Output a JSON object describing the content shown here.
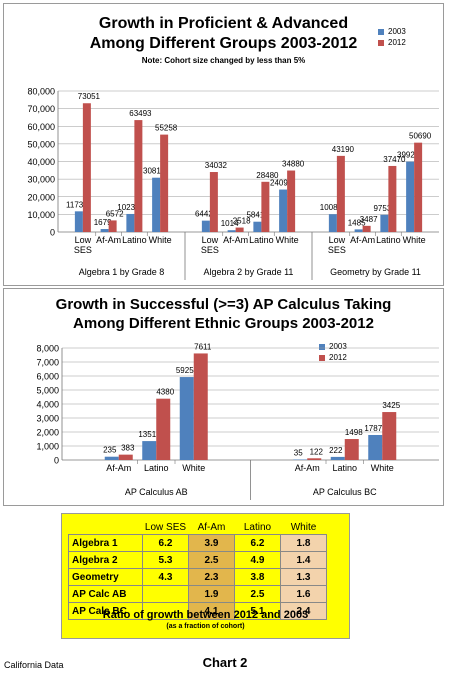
{
  "chart_data": [
    {
      "type": "bar",
      "title": "Growth in Proficient & Advanced Among Different Groups 2003-2012",
      "title_lines": [
        "Growth in Proficient & Advanced",
        "Among Different Groups 2003-2012"
      ],
      "subtitle": "Note: Cohort size changed by less than 5%",
      "groups": [
        {
          "label": "Algebra 1 by Grade 8",
          "categories": [
            "Low SES",
            "Af-Am",
            "Latino",
            "White"
          ]
        },
        {
          "label": "Algebra 2 by Grade 11",
          "categories": [
            "Low SES",
            "Af-Am",
            "Latino",
            "White"
          ]
        },
        {
          "label": "Geometry by Grade 11",
          "categories": [
            "Low SES",
            "Af-Am",
            "Latino",
            "White"
          ]
        }
      ],
      "series": [
        {
          "name": "2003",
          "color": "#4f81bd",
          "values": [
            11730,
            1679,
            10236,
            30810,
            6442,
            1014,
            5841,
            24092,
            10088,
            1485,
            9753,
            39926
          ]
        },
        {
          "name": "2012",
          "color": "#c0504d",
          "values": [
            73051,
            6572,
            63493,
            55258,
            34032,
            2518,
            28480,
            34880,
            43190,
            3487,
            37470,
            50690
          ]
        }
      ],
      "ylim": [
        0,
        80000
      ],
      "yticks": [
        "0",
        "10,000",
        "20,000",
        "30,000",
        "40,000",
        "50,000",
        "60,000",
        "70,000",
        "80,000"
      ],
      "grid": true,
      "legend": "top-right"
    },
    {
      "type": "bar",
      "title": "Growth in Successful (>=3) AP Calculus Taking Among Different Ethnic Groups 2003-2012",
      "title_lines": [
        "Growth in Successful (>=3) AP Calculus Taking",
        "Among Different Ethnic Groups 2003-2012"
      ],
      "groups": [
        {
          "label": "AP Calculus AB",
          "categories": [
            "Af-Am",
            "Latino",
            "White"
          ]
        },
        {
          "label": "AP Calculus BC",
          "categories": [
            "Af-Am",
            "Latino",
            "White"
          ]
        }
      ],
      "series": [
        {
          "name": "2003",
          "color": "#4f81bd",
          "values": [
            235,
            1351,
            5925,
            35,
            222,
            1787
          ]
        },
        {
          "name": "2012",
          "color": "#c0504d",
          "values": [
            383,
            4380,
            7611,
            122,
            1498,
            3425
          ]
        }
      ],
      "ylim": [
        0,
        8000
      ],
      "yticks": [
        "0",
        "1,000",
        "2,000",
        "3,000",
        "4,000",
        "5,000",
        "6,000",
        "7,000",
        "8,000"
      ],
      "grid": true,
      "legend": "right"
    }
  ],
  "ratio_table": {
    "columns": [
      "Low SES",
      "Af-Am",
      "Latino",
      "White"
    ],
    "rows": [
      {
        "label": "Algebra 1",
        "values": [
          "6.2",
          "3.9",
          "6.2",
          "1.8"
        ]
      },
      {
        "label": "Algebra 2",
        "values": [
          "5.3",
          "2.5",
          "4.9",
          "1.4"
        ]
      },
      {
        "label": "Geometry",
        "values": [
          "4.3",
          "2.3",
          "3.8",
          "1.3"
        ]
      },
      {
        "label": "AP Calc AB",
        "values": [
          "",
          "1.9",
          "2.5",
          "1.6"
        ]
      },
      {
        "label": "AP Calc BC",
        "values": [
          "",
          "4.1",
          "5.1",
          "2.4"
        ]
      }
    ],
    "footer": "Ratio of growth between 2012 and 2003",
    "subfooter": "(as a fraction of cohort)",
    "colors": {
      "yellow": "#ffff00",
      "gold": "#e2b64c",
      "peach": "#f3d3ac"
    }
  },
  "footer": {
    "left": "California Data",
    "center": "Chart 2"
  }
}
